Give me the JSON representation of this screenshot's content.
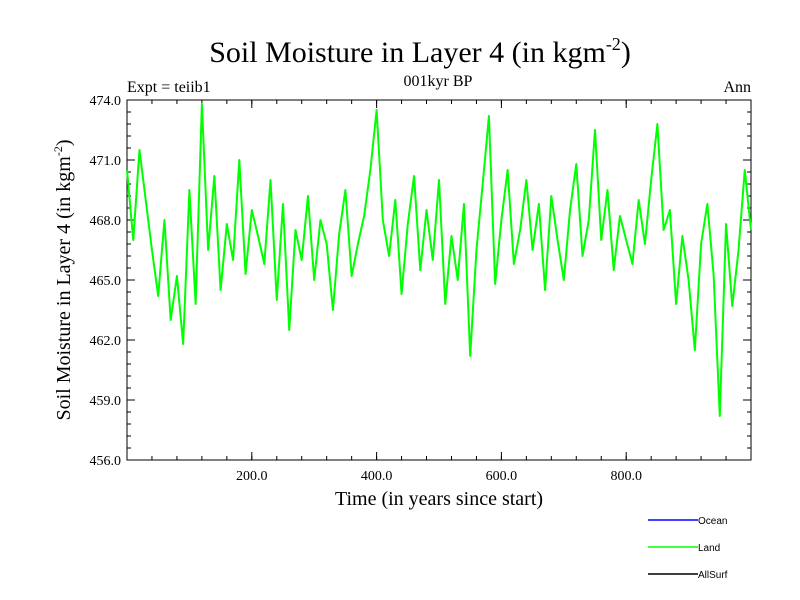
{
  "chart_data": {
    "type": "line",
    "title": "Soil Moisture in Layer 4 (in kgm",
    "title_sup": "-2",
    "title_close": ")",
    "subtitle_center": "001kyr BP",
    "subtitle_left": "Expt = teiib1",
    "subtitle_right": "Ann",
    "xlabel": "Time (in years since start)",
    "ylabel": "Soil Moisture in Layer 4 (in kgm",
    "ylabel_sup": "-2",
    "ylabel_close": ")",
    "xlim": [
      0,
      1000
    ],
    "ylim": [
      456,
      474
    ],
    "xticks": [
      200,
      400,
      600,
      800
    ],
    "xtick_labels": [
      "200.0",
      "400.0",
      "600.0",
      "800.0"
    ],
    "yticks": [
      456,
      459,
      462,
      465,
      468,
      471,
      474
    ],
    "ytick_labels": [
      "456.0",
      "459.0",
      "462.0",
      "465.0",
      "468.0",
      "471.0",
      "474.0"
    ],
    "grid": false,
    "legend_position": "bottom-right",
    "series": [
      {
        "name": "Ocean",
        "color": "#0000ff",
        "values": []
      },
      {
        "name": "Land",
        "color": "#00ff00",
        "x": [
          0,
          10,
          20,
          30,
          40,
          50,
          60,
          70,
          80,
          90,
          100,
          110,
          120,
          130,
          140,
          150,
          160,
          170,
          180,
          190,
          200,
          210,
          220,
          230,
          240,
          250,
          260,
          270,
          280,
          290,
          300,
          310,
          320,
          330,
          340,
          350,
          360,
          370,
          380,
          390,
          400,
          410,
          420,
          430,
          440,
          450,
          460,
          470,
          480,
          490,
          500,
          510,
          520,
          530,
          540,
          550,
          560,
          570,
          580,
          590,
          600,
          610,
          620,
          630,
          640,
          650,
          660,
          670,
          680,
          690,
          700,
          710,
          720,
          730,
          740,
          750,
          760,
          770,
          780,
          790,
          800,
          810,
          820,
          830,
          840,
          850,
          860,
          870,
          880,
          890,
          900,
          910,
          920,
          930,
          940,
          950,
          960,
          970,
          980,
          990,
          1000
        ],
        "values": [
          470.5,
          467.0,
          471.5,
          469.0,
          466.5,
          464.2,
          468.0,
          463.0,
          465.2,
          461.8,
          469.5,
          463.8,
          473.8,
          466.5,
          470.2,
          464.5,
          467.8,
          466.0,
          471.0,
          465.3,
          468.5,
          467.2,
          465.8,
          470.0,
          464.0,
          468.8,
          462.5,
          467.5,
          466.0,
          469.2,
          465.0,
          468.0,
          466.8,
          463.5,
          467.3,
          469.5,
          465.2,
          466.8,
          468.2,
          470.5,
          473.5,
          468.0,
          466.2,
          469.0,
          464.3,
          467.8,
          470.2,
          465.5,
          468.5,
          466.0,
          470.0,
          463.8,
          467.2,
          465.0,
          468.8,
          461.2,
          466.5,
          469.8,
          473.2,
          464.8,
          468.0,
          470.5,
          465.8,
          467.5,
          470.0,
          466.5,
          468.8,
          464.5,
          469.2,
          467.0,
          465.0,
          468.5,
          470.8,
          466.2,
          468.0,
          472.5,
          467.0,
          469.5,
          465.5,
          468.2,
          467.0,
          465.8,
          469.0,
          466.8,
          470.0,
          472.8,
          467.5,
          468.5,
          463.8,
          467.2,
          465.0,
          461.5,
          466.8,
          468.8,
          465.3,
          458.2,
          467.8,
          463.7,
          466.5,
          470.5,
          467.5
        ]
      },
      {
        "name": "AllSurf",
        "color": "#000000",
        "values": []
      }
    ]
  }
}
